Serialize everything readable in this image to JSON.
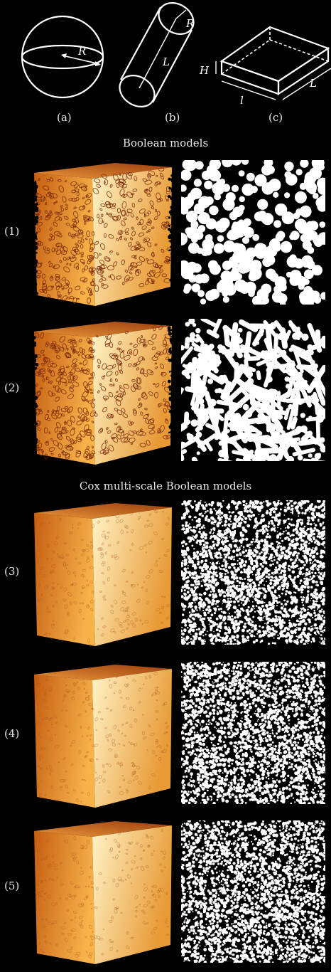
{
  "shapes": {
    "a": {
      "caption": "(a)",
      "symbol": "R"
    },
    "b": {
      "caption": "(b)",
      "symbols": [
        "R",
        "L"
      ]
    },
    "c": {
      "caption": "(c)",
      "symbols": [
        "H",
        "l",
        "L"
      ]
    }
  },
  "sections": {
    "boolean_title": "Boolean models",
    "cox_title": "Cox multi-scale Boolean models"
  },
  "rows": [
    {
      "label": "(1)",
      "texture": "coarse-spheres"
    },
    {
      "label": "(2)",
      "texture": "coarse-cylinders"
    },
    {
      "label": "(3)",
      "texture": "fine"
    },
    {
      "label": "(4)",
      "texture": "fine"
    },
    {
      "label": "(5)",
      "texture": "fine"
    }
  ],
  "colors": {
    "background": "#000000",
    "cube_light": "#fff2c0",
    "cube_dark": "#c25a10",
    "line": "#ffffff"
  }
}
